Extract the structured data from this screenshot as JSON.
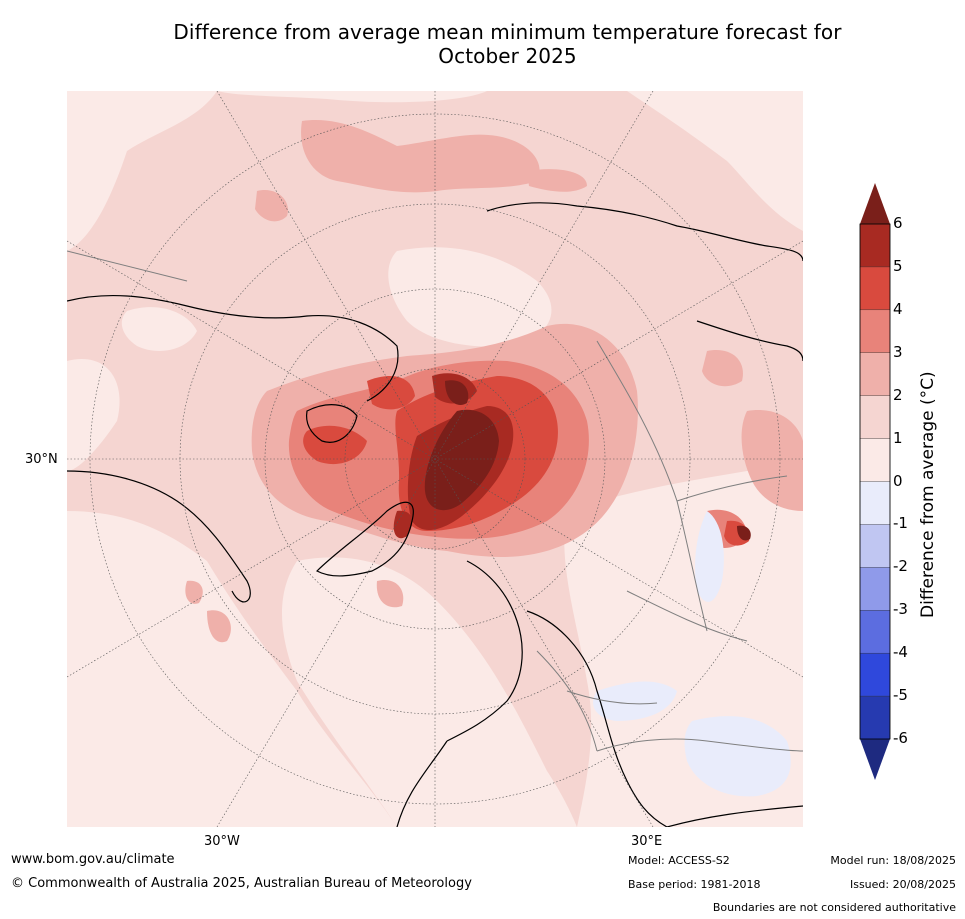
{
  "title_line1": "Difference from average mean minimum temperature forecast for",
  "title_line2": "October 2025",
  "map": {
    "lat_label": "30°N",
    "lon_labels": [
      "30°W",
      "30°E"
    ]
  },
  "legend": {
    "title": "Difference from average (°C)",
    "ticks": [
      "6",
      "5",
      "4",
      "3",
      "2",
      "1",
      "0",
      "-1",
      "-2",
      "-3",
      "-4",
      "-5",
      "-6"
    ],
    "colors": {
      "gt6": "#7a1f1a",
      "5to6": "#a82a22",
      "4to5": "#d94a3e",
      "3to4": "#e8837a",
      "2to3": "#efb0aa",
      "1to2": "#f5d5d1",
      "0to1": "#fbeae7",
      "m1to0": "#e9ecfb",
      "m2tom1": "#c0c6f2",
      "m3tom2": "#8f9aea",
      "m4tom3": "#5c6de0",
      "m5tom4": "#2f48dc",
      "m6tom5": "#263ab0",
      "ltm6": "#1e2a80"
    }
  },
  "footer": {
    "url": "www.bom.gov.au/climate",
    "copyright": "© Commonwealth of Australia 2025, Australian Bureau of Meteorology",
    "model": "Model: ACCESS-S2",
    "base_period": "Base period: 1981-2018",
    "model_run": "Model run: 18/08/2025",
    "issued": "Issued: 20/08/2025",
    "disclaimer": "Boundaries are not considered authoritative"
  }
}
